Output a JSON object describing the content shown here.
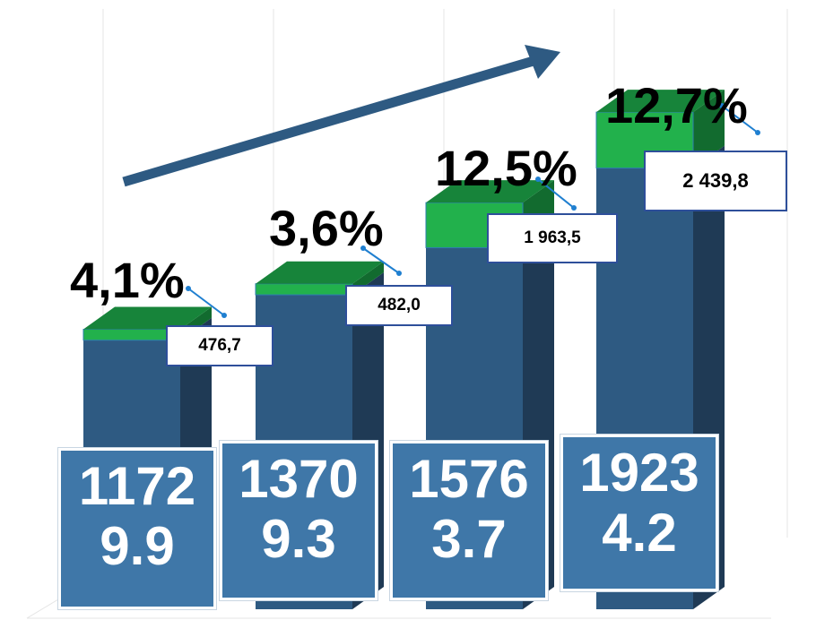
{
  "chart_data": {
    "type": "bar",
    "stacked": true,
    "series": [
      {
        "color": "#2e5a82",
        "values": [
          11729.9,
          13709.3,
          15763.7,
          19234.2
        ]
      },
      {
        "color": "#22b14c",
        "values": [
          476.7,
          482.0,
          1963.5,
          2439.8
        ],
        "value_labels": [
          "476,7",
          "482,0",
          "1 963,5",
          "2 439,8"
        ]
      }
    ],
    "growth": {
      "values": [
        4.1,
        3.6,
        12.5,
        12.7
      ],
      "value_labels": [
        "4,1%",
        "3,6%",
        "12,5%",
        "12,7%"
      ]
    }
  }
}
